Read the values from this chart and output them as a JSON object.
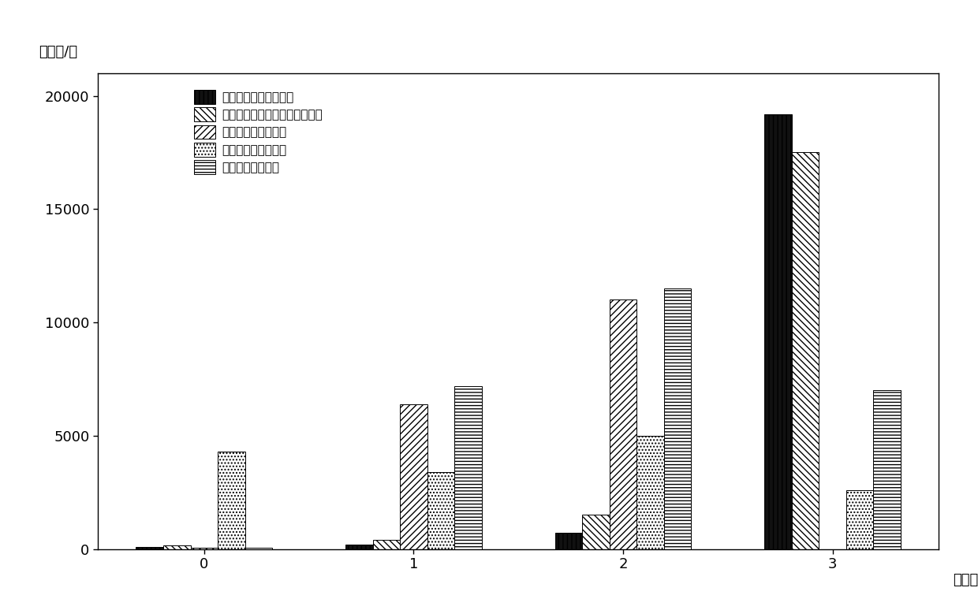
{
  "categories": [
    0,
    1,
    2,
    3
  ],
  "series_labels": [
    "理论最优功率分配方式",
    "基于路径损耗部分补偿分配方式",
    "等功率发射分配方式",
    "等功率接收分配方式",
    "随机功率分配方式"
  ],
  "series_values": [
    [
      100,
      200,
      700,
      19200
    ],
    [
      150,
      400,
      1500,
      17500
    ],
    [
      50,
      6400,
      11000,
      0
    ],
    [
      4300,
      3400,
      5000,
      2600
    ],
    [
      50,
      7200,
      11500,
      7000
    ]
  ],
  "xlabel": "用户数/个",
  "ylabel": "样本数/个",
  "ylim": [
    0,
    21000
  ],
  "yticks": [
    0,
    5000,
    10000,
    15000,
    20000
  ],
  "bar_width": 0.13,
  "face_colors": [
    "#111111",
    "#ffffff",
    "#ffffff",
    "#ffffff",
    "#ffffff"
  ],
  "hatches": [
    "|||",
    "\\\\",
    "////",
    "....",
    "----"
  ],
  "edge_color": "#000000",
  "figsize": [
    12.4,
    7.74
  ],
  "dpi": 100,
  "tick_fontsize": 13,
  "label_fontsize": 13,
  "legend_fontsize": 11
}
